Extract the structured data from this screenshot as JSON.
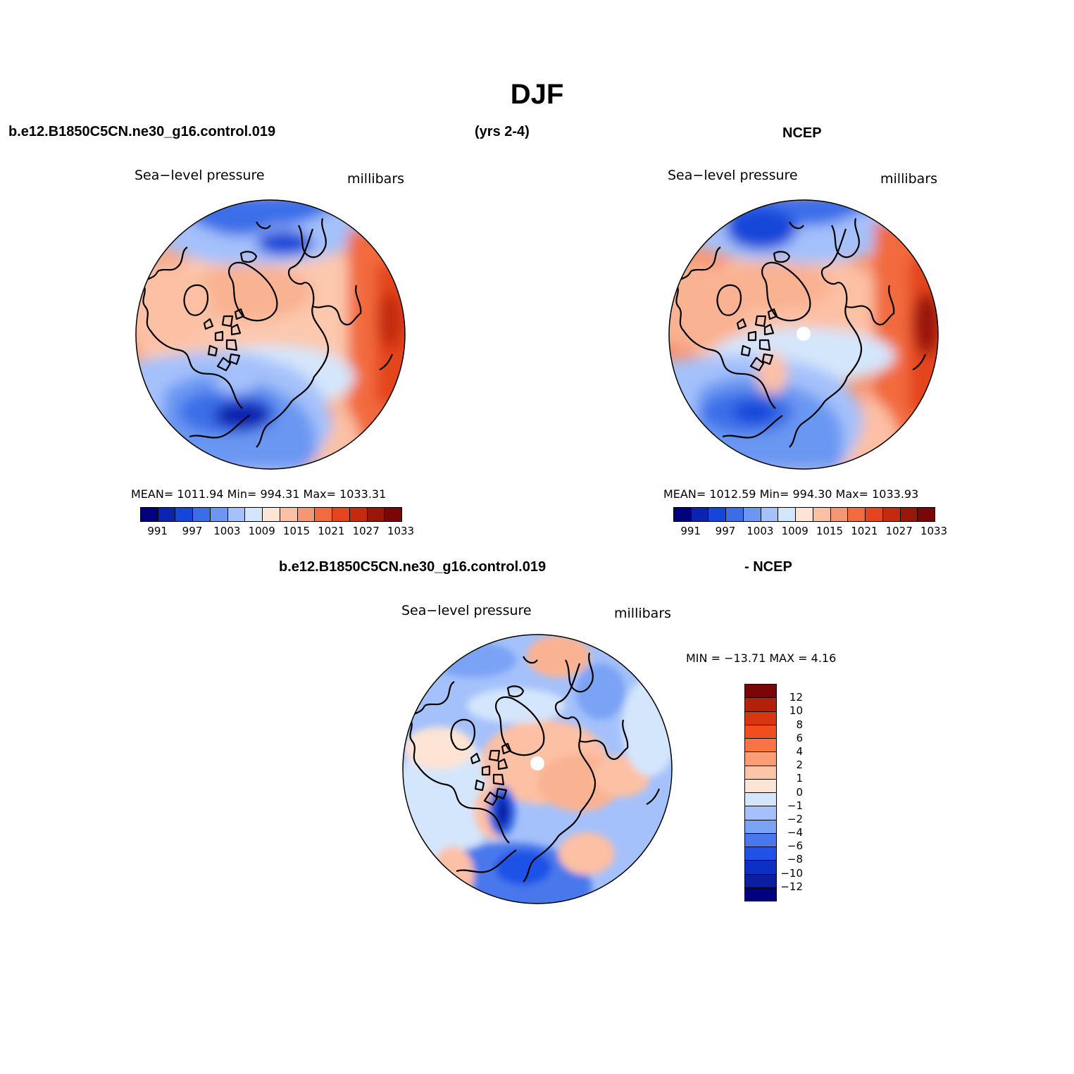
{
  "page": {
    "title": "DJF",
    "case_name": "b.e12.B1850C5CN.ne30_g16.control.019",
    "years": "(yrs 2-4)",
    "obs_name": "NCEP",
    "diff_left": "b.e12.B1850C5CN.ne30_g16.control.019",
    "diff_right": "- NCEP"
  },
  "panels": {
    "model": {
      "variable": "Sea−level pressure",
      "units": "millibars",
      "stats": "MEAN= 1011.94   Min= 994.31   Max= 1033.31"
    },
    "obs": {
      "variable": "Sea−level pressure",
      "units": "millibars",
      "stats": "MEAN= 1012.59   Min= 994.30   Max= 1033.93"
    },
    "diff": {
      "variable": "Sea−level pressure",
      "units": "millibars",
      "stats": "MIN = −13.71  MAX =    4.16"
    }
  },
  "colorbars": {
    "abs_colors": [
      "#00007f",
      "#0a23b0",
      "#1447d9",
      "#3a6ee8",
      "#6b97f2",
      "#a4c1fb",
      "#d4e6fb",
      "#fde4d4",
      "#fcc0a4",
      "#f79672",
      "#f26a3e",
      "#e4451c",
      "#c52a0c",
      "#9a1608",
      "#7a0606"
    ],
    "abs_labels": [
      "991",
      "997",
      "1003",
      "1009",
      "1015",
      "1021",
      "1027",
      "1033"
    ],
    "diff_colors": [
      "#7a0606",
      "#b52008",
      "#d83510",
      "#f04e1e",
      "#f87444",
      "#fa9c74",
      "#fcc4a8",
      "#fde4d4",
      "#d4e6fb",
      "#a4c1fb",
      "#7aa2f5",
      "#4a78ec",
      "#1f52e6",
      "#0a30c4",
      "#0a1ea0",
      "#00007f"
    ],
    "diff_labels": [
      "12",
      "10",
      "8",
      "6",
      "4",
      "2",
      "1",
      "0",
      "−1",
      "−2",
      "−4",
      "−6",
      "−8",
      "−10",
      "−12"
    ]
  }
}
